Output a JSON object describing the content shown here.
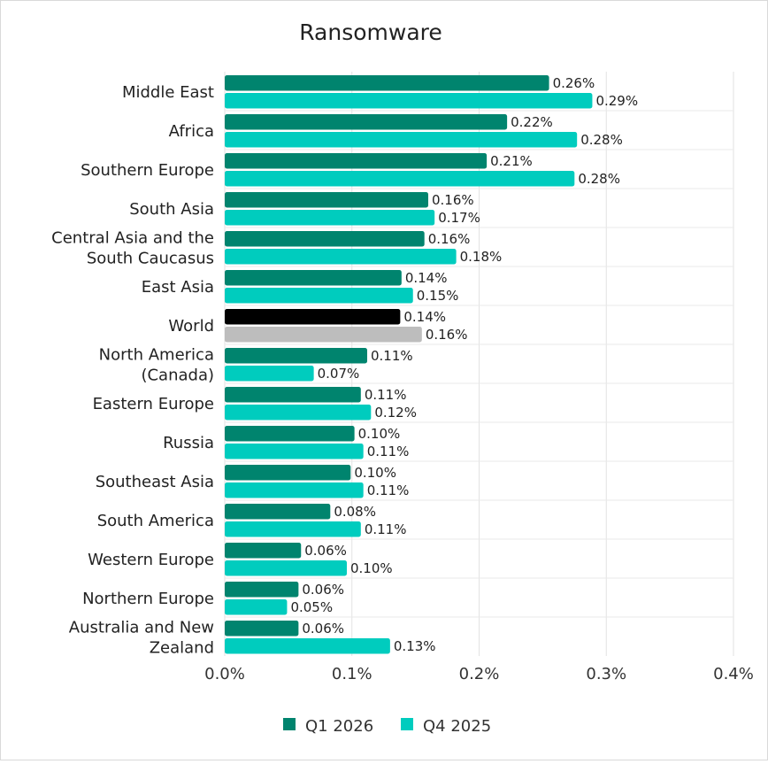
{
  "chart_data": {
    "type": "bar",
    "orientation": "horizontal",
    "title": "Ransomware",
    "categories": [
      "Middle East",
      "Africa",
      "Southern Europe",
      "South Asia",
      [
        "Central Asia and the",
        "South Caucasus"
      ],
      "East Asia",
      "World",
      [
        "North America",
        "(Canada)"
      ],
      "Eastern Europe",
      "Russia",
      "Southeast Asia",
      "South America",
      "Western Europe",
      "Northern Europe",
      [
        "Australia and New",
        "Zealand"
      ]
    ],
    "series": [
      {
        "name": "Q1 2026",
        "color": "#00846e",
        "values": [
          0.255,
          0.222,
          0.206,
          0.16,
          0.157,
          0.139,
          0.138,
          0.112,
          0.107,
          0.102,
          0.099,
          0.083,
          0.06,
          0.058,
          0.058
        ],
        "labels": [
          "0.26%",
          "0.22%",
          "0.21%",
          "0.16%",
          "0.16%",
          "0.14%",
          "0.14%",
          "0.11%",
          "0.11%",
          "0.10%",
          "0.10%",
          "0.08%",
          "0.06%",
          "0.06%",
          "0.06%"
        ]
      },
      {
        "name": "Q4 2025",
        "color": "#00ccbe",
        "values": [
          0.289,
          0.277,
          0.275,
          0.165,
          0.182,
          0.148,
          0.155,
          0.07,
          0.115,
          0.109,
          0.109,
          0.107,
          0.096,
          0.049,
          0.13
        ],
        "labels": [
          "0.29%",
          "0.28%",
          "0.28%",
          "0.17%",
          "0.18%",
          "0.15%",
          "0.16%",
          "0.07%",
          "0.12%",
          "0.11%",
          "0.11%",
          "0.11%",
          "0.10%",
          "0.05%",
          "0.13%"
        ]
      }
    ],
    "highlight": {
      "category_index": 6,
      "colors": [
        "#000000",
        "#bdbdbd"
      ]
    },
    "xlim": [
      0,
      0.4
    ],
    "xticks": [
      "0.0%",
      "0.1%",
      "0.2%",
      "0.3%",
      "0.4%"
    ],
    "grid": true,
    "legend_placement": "bottom-center"
  }
}
